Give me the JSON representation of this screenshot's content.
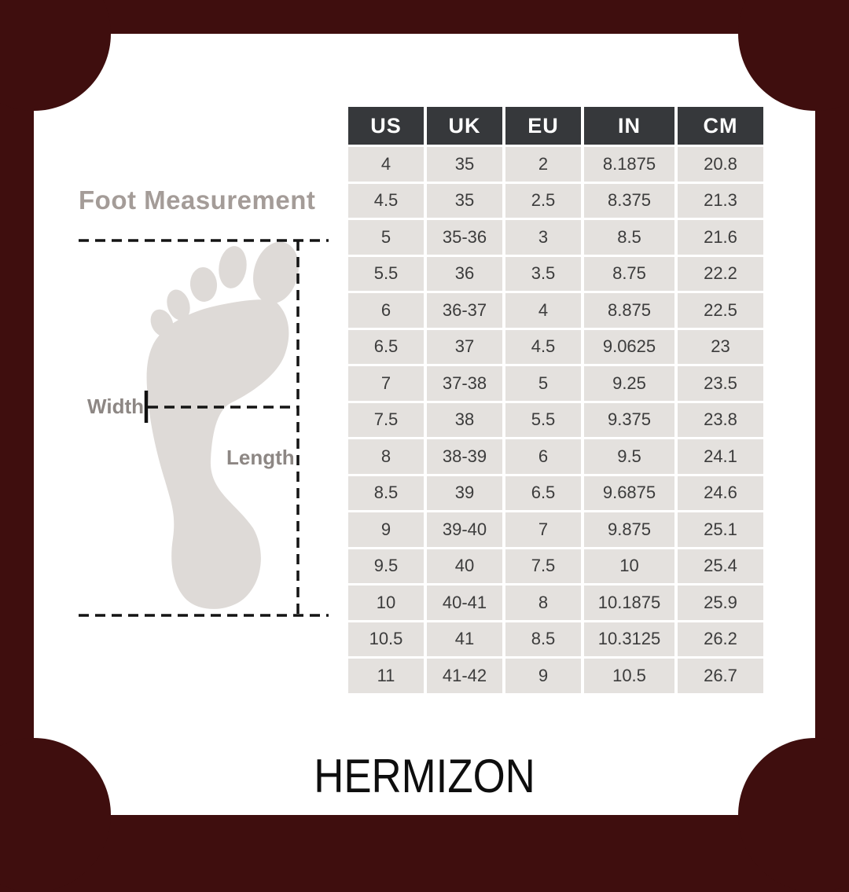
{
  "brand": {
    "logo_text": "HERMIZON"
  },
  "measurement_diagram": {
    "title": "Foot Measurement",
    "width_label": "Width",
    "length_label": "Length"
  },
  "chart_data": {
    "type": "table",
    "columns": [
      "US",
      "UK",
      "EU",
      "IN",
      "CM"
    ],
    "rows": [
      [
        "4",
        "35",
        "2",
        "8.1875",
        "20.8"
      ],
      [
        "4.5",
        "35",
        "2.5",
        "8.375",
        "21.3"
      ],
      [
        "5",
        "35-36",
        "3",
        "8.5",
        "21.6"
      ],
      [
        "5.5",
        "36",
        "3.5",
        "8.75",
        "22.2"
      ],
      [
        "6",
        "36-37",
        "4",
        "8.875",
        "22.5"
      ],
      [
        "6.5",
        "37",
        "4.5",
        "9.0625",
        "23"
      ],
      [
        "7",
        "37-38",
        "5",
        "9.25",
        "23.5"
      ],
      [
        "7.5",
        "38",
        "5.5",
        "9.375",
        "23.8"
      ],
      [
        "8",
        "38-39",
        "6",
        "9.5",
        "24.1"
      ],
      [
        "8.5",
        "39",
        "6.5",
        "9.6875",
        "24.6"
      ],
      [
        "9",
        "39-40",
        "7",
        "9.875",
        "25.1"
      ],
      [
        "9.5",
        "40",
        "7.5",
        "10",
        "25.4"
      ],
      [
        "10",
        "40-41",
        "8",
        "10.1875",
        "25.9"
      ],
      [
        "10.5",
        "41",
        "8.5",
        "10.3125",
        "26.2"
      ],
      [
        "11",
        "41-42",
        "9",
        "10.5",
        "26.7"
      ]
    ]
  },
  "colors": {
    "frame_background": "#3f0e0e",
    "card": "#ffffff",
    "table_header_bg": "#36383b",
    "table_header_text": "#ffffff",
    "table_cell_bg": "#e4e1de",
    "table_cell_text": "#3c3c3c",
    "footprint": "#dedad7",
    "diagram_title_text": "#a49c98",
    "measure_label_text": "#8d8784",
    "dashed_line": "#141414",
    "logo_text": "#0e0e0e"
  }
}
